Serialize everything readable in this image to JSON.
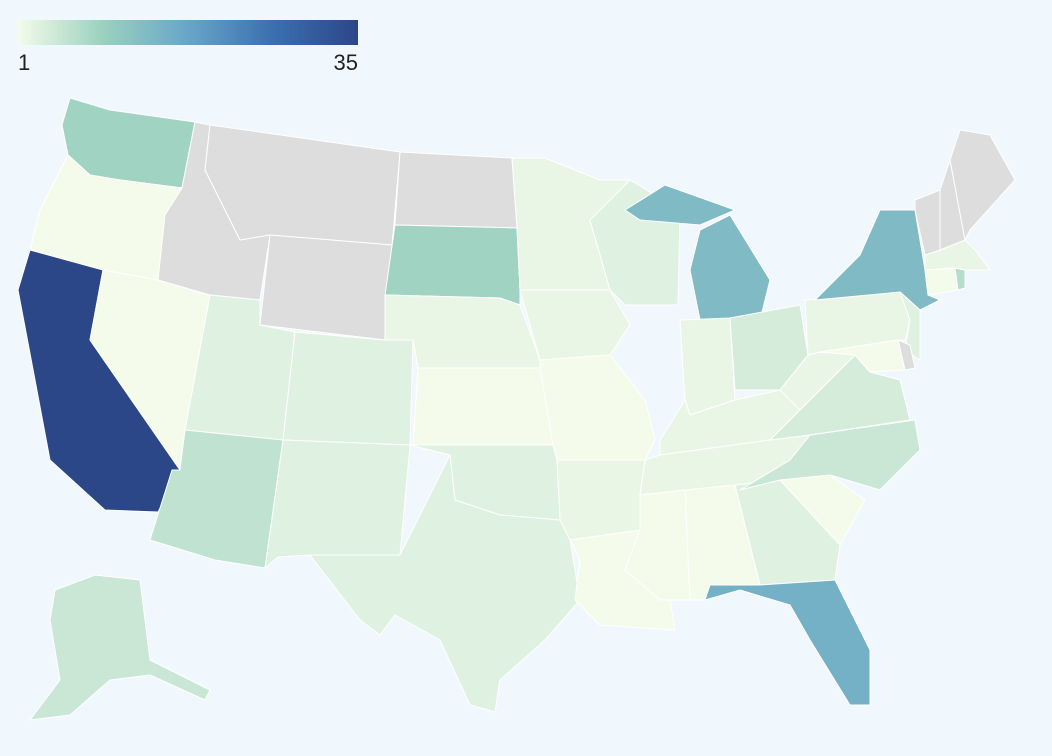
{
  "chart_data": {
    "type": "choropleth",
    "zlim": [
      1,
      35
    ],
    "colors": [
      "#f4fbea",
      "#9bd1bf",
      "#68a6c8",
      "#3b6fb0",
      "#2c4787"
    ],
    "missing_color": "#dddddd",
    "values": [
      9,
      1,
      35,
      1,
      null,
      null,
      null,
      3,
      3,
      6,
      3,
      null,
      9,
      2,
      1,
      3,
      3,
      2,
      2,
      1,
      2,
      1,
      3,
      14,
      2,
      4,
      2,
      2,
      1,
      1,
      3,
      16,
      1,
      5,
      4,
      2,
      2,
      14,
      3,
      null,
      1,
      1,
      7,
      2,
      null,
      null,
      null,
      5
    ]
  }
}
